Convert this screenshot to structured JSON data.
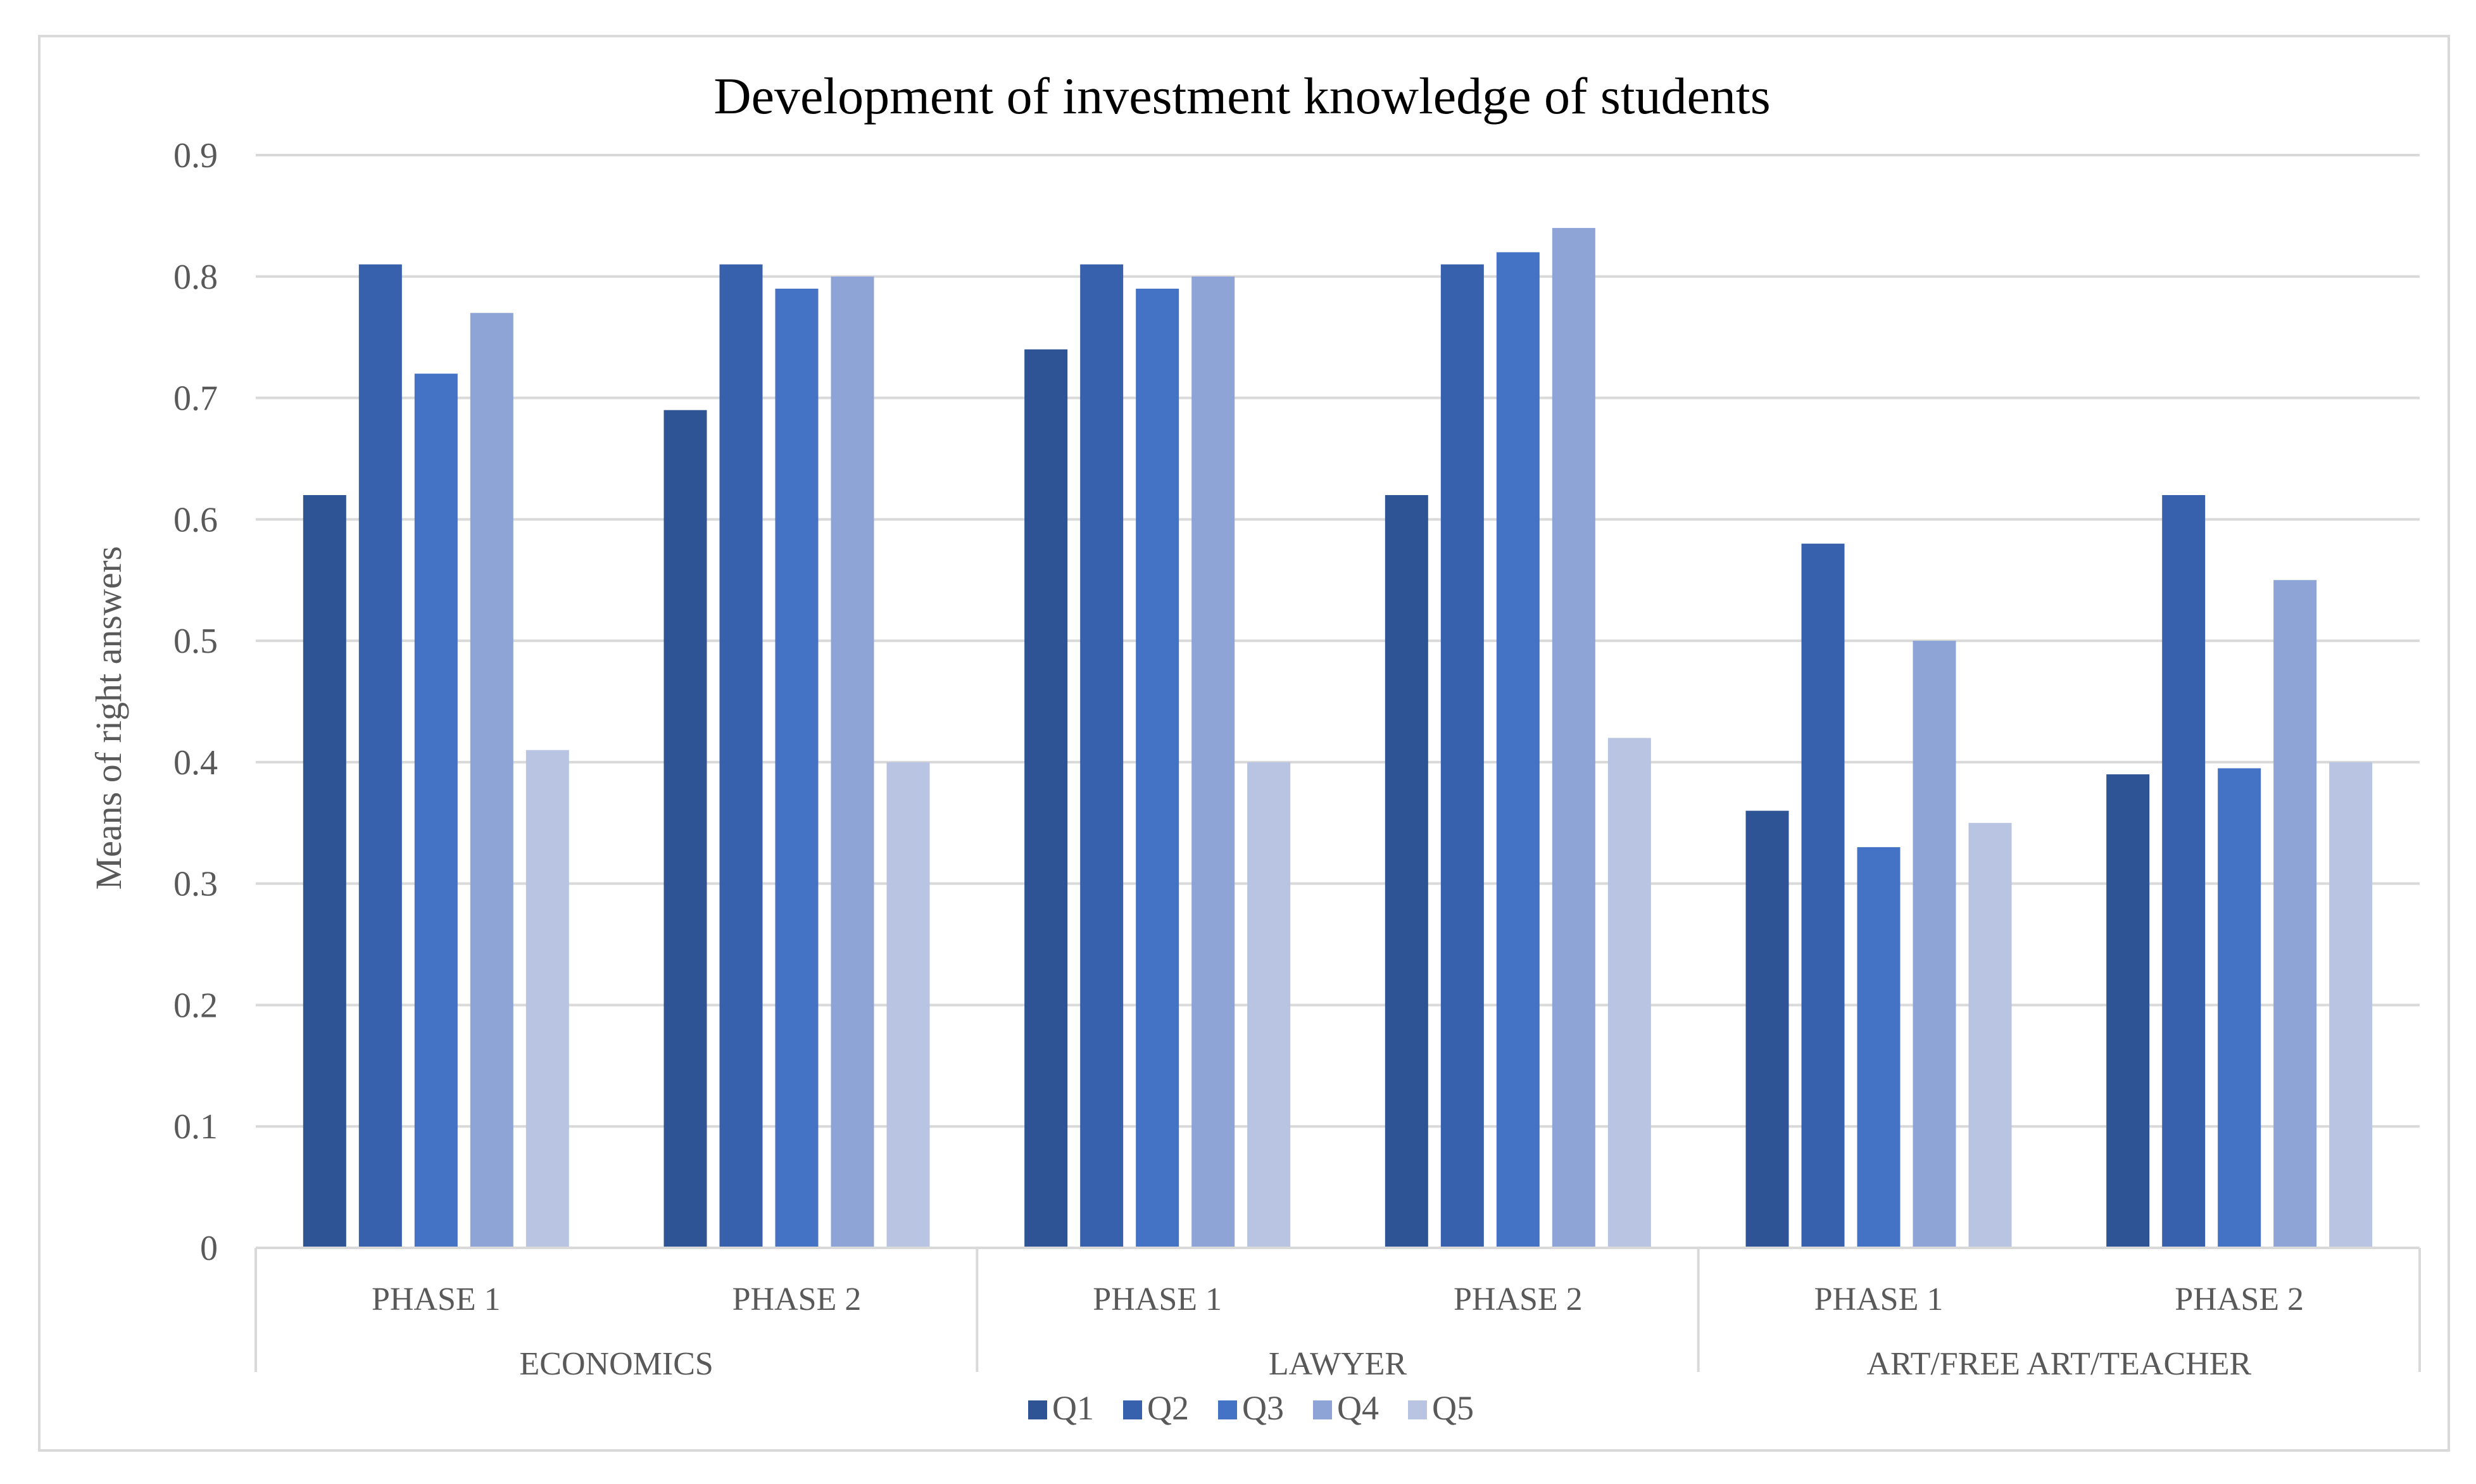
{
  "chart_data": {
    "type": "bar",
    "title": "Development of investment knowledge of students",
    "xlabel": "",
    "ylabel": "Means of right  answers",
    "ylim": [
      0,
      0.9
    ],
    "yticks": [
      "0",
      "0.1",
      "0.2",
      "0.3",
      "0.4",
      "0.5",
      "0.6",
      "0.7",
      "0.8",
      "0.9"
    ],
    "grid": true,
    "legend_position": "bottom",
    "groups": [
      {
        "label": "ECONOMICS",
        "categories": [
          "PHASE 1",
          "PHASE 2"
        ]
      },
      {
        "label": "LAWYER",
        "categories": [
          "PHASE 1",
          "PHASE 2"
        ]
      },
      {
        "label": "ART/FREE ART/TEACHER",
        "categories": [
          "PHASE 1",
          "PHASE 2"
        ]
      }
    ],
    "categories": [
      "PHASE 1",
      "PHASE 2",
      "PHASE 1",
      "PHASE 2",
      "PHASE 1",
      "PHASE 2"
    ],
    "series": [
      {
        "name": "Q1",
        "color": "#2f5496",
        "values": [
          0.62,
          0.69,
          0.74,
          0.62,
          0.36,
          0.39
        ]
      },
      {
        "name": "Q2",
        "color": "#3761ac",
        "values": [
          0.81,
          0.81,
          0.81,
          0.81,
          0.58,
          0.62
        ]
      },
      {
        "name": "Q3",
        "color": "#4472c4",
        "values": [
          0.72,
          0.79,
          0.79,
          0.82,
          0.33,
          0.395
        ]
      },
      {
        "name": "Q4",
        "color": "#8ea4d6",
        "values": [
          0.77,
          0.8,
          0.8,
          0.84,
          0.5,
          0.55
        ]
      },
      {
        "name": "Q5",
        "color": "#b9c4e3",
        "values": [
          0.41,
          0.4,
          0.4,
          0.42,
          0.35,
          0.4
        ]
      }
    ]
  }
}
